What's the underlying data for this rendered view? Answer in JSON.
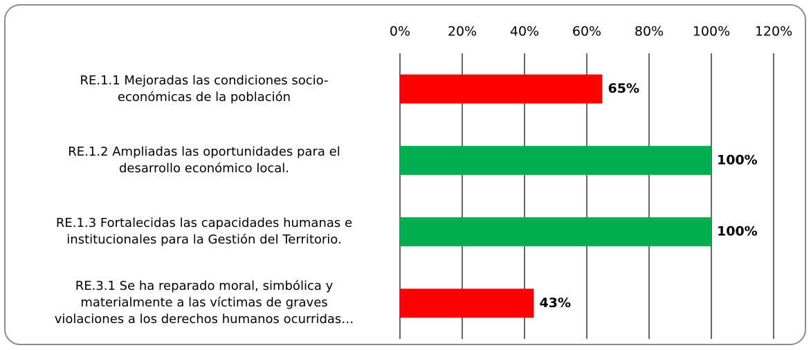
{
  "chart_data": {
    "type": "bar",
    "orientation": "horizontal",
    "categories": [
      "RE.1.1 Mejoradas las condiciones socio-\neconómicas de la población",
      "RE.1.2 Ampliadas las oportunidades para el\ndesarrollo económico local.",
      "RE.1.3 Fortalecidas las capacidades humanas e\ninstitucionales para la Gestión del Territorio.",
      "RE.3.1 Se ha reparado moral, simbólica y\nmaterialmente a las víctimas de graves\nviolaciones a los derechos humanos ocurridas…"
    ],
    "values": [
      65,
      100,
      100,
      43
    ],
    "value_labels": [
      "65%",
      "100%",
      "100%",
      "43%"
    ],
    "colors": [
      "#ff0000",
      "#00b050",
      "#00b050",
      "#ff0000"
    ],
    "xlim": [
      0,
      120
    ],
    "xticks": [
      {
        "value": 0,
        "label": "0%"
      },
      {
        "value": 20,
        "label": "20%"
      },
      {
        "value": 40,
        "label": "40%"
      },
      {
        "value": 60,
        "label": "60%"
      },
      {
        "value": 80,
        "label": "80%"
      },
      {
        "value": 100,
        "label": "100%"
      },
      {
        "value": 120,
        "label": "120%"
      }
    ],
    "grid": true
  }
}
